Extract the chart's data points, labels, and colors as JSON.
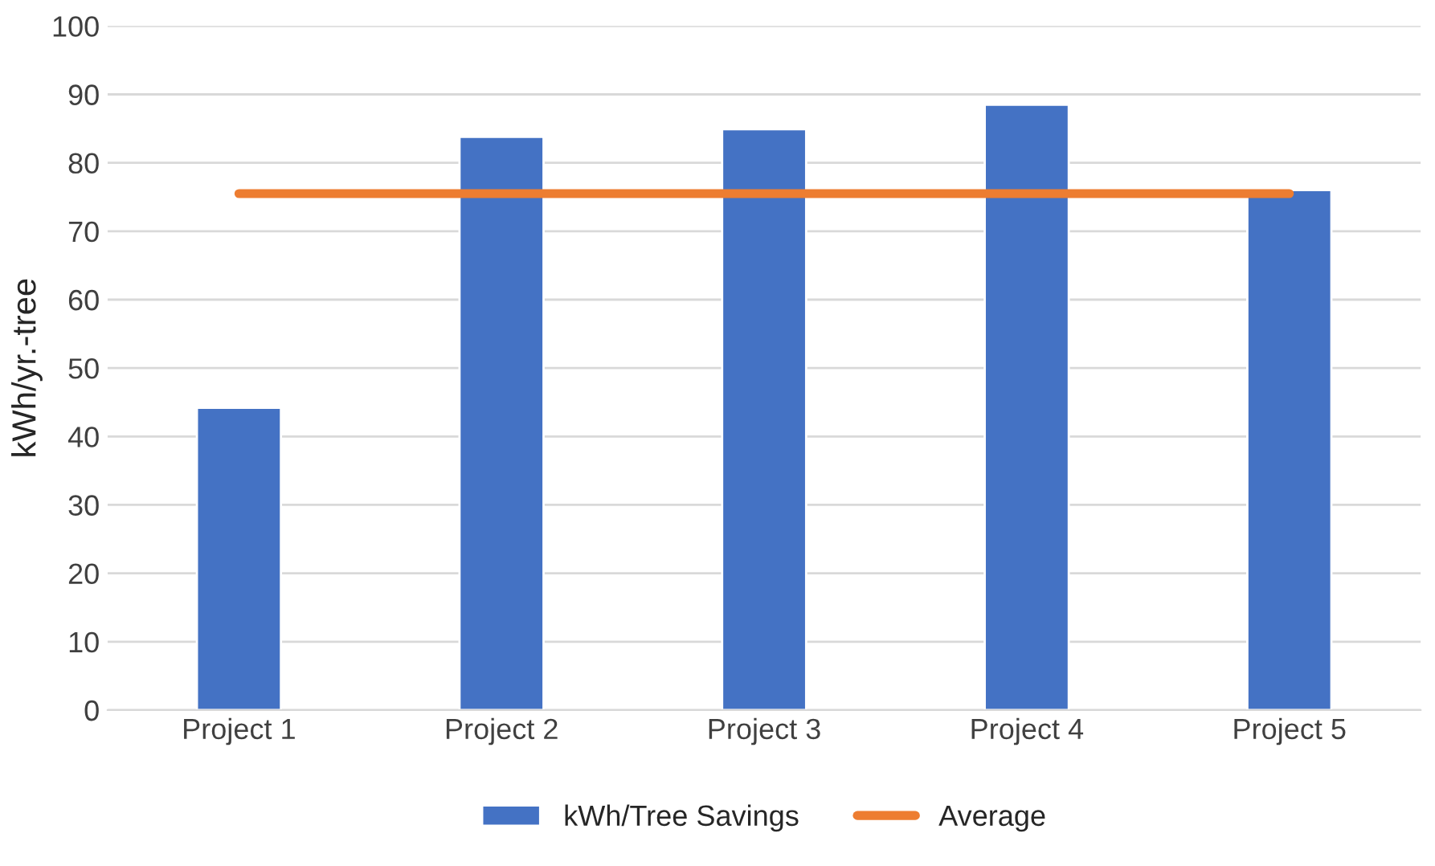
{
  "chart_data": {
    "type": "bar",
    "ylabel": "kWh/yr.-tree",
    "categories": [
      "Project 1",
      "Project 2",
      "Project 3",
      "Project 4",
      "Project 5"
    ],
    "series": [
      {
        "name": "kWh/Tree Savings",
        "color": "#4472c4",
        "values": [
          44.2,
          83.8,
          84.9,
          88.5,
          76.0
        ]
      },
      {
        "name": "Average",
        "type": "line",
        "color": "#ed7d31",
        "values": [
          75.5,
          75.5,
          75.5,
          75.5,
          75.5
        ]
      }
    ],
    "ylim": [
      0,
      100
    ],
    "yticks": [
      0,
      10,
      20,
      30,
      40,
      50,
      60,
      70,
      80,
      90,
      100
    ],
    "grid": "y",
    "legend": "bottom"
  }
}
